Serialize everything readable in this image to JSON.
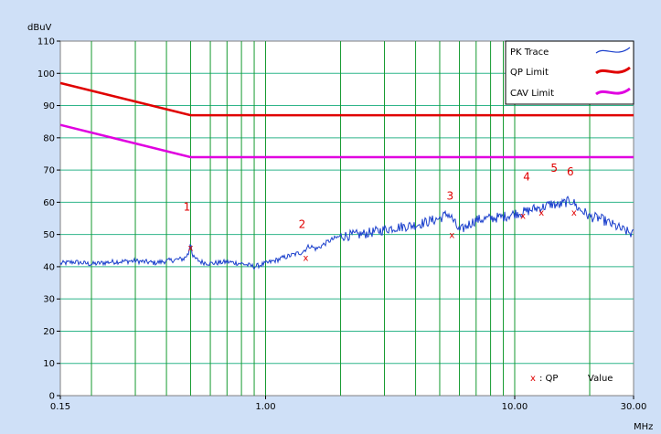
{
  "chart_data": {
    "type": "line",
    "ylabel": "dBuV",
    "xlabel": "MHz",
    "x_scale": "log",
    "xlim": [
      0.15,
      30
    ],
    "ylim": [
      0,
      110
    ],
    "x_tick_labels": [
      "0.15",
      "1.00",
      "10.00",
      "30.00"
    ],
    "x_ticks": [
      0.15,
      1,
      10,
      30
    ],
    "y_ticks": [
      0,
      10,
      20,
      30,
      40,
      50,
      60,
      70,
      80,
      90,
      100,
      110
    ],
    "y_tick_labels": [
      "0",
      "10",
      "20",
      "30",
      "40",
      "50",
      "60",
      "70",
      "80",
      "90",
      "100",
      "110"
    ],
    "grid": true,
    "legend_position": "top-right",
    "series": [
      {
        "name": "PK Trace",
        "color": "#1a3fcc",
        "points": [
          [
            0.15,
            41
          ],
          [
            0.17,
            41.5
          ],
          [
            0.2,
            40.8
          ],
          [
            0.24,
            41.5
          ],
          [
            0.3,
            41.8
          ],
          [
            0.36,
            41.2
          ],
          [
            0.42,
            42
          ],
          [
            0.47,
            42.5
          ],
          [
            0.49,
            44
          ],
          [
            0.5,
            48
          ],
          [
            0.51,
            43
          ],
          [
            0.55,
            41.5
          ],
          [
            0.6,
            41
          ],
          [
            0.7,
            41.5
          ],
          [
            0.8,
            41
          ],
          [
            0.9,
            40
          ],
          [
            1.0,
            41
          ],
          [
            1.1,
            42
          ],
          [
            1.2,
            43
          ],
          [
            1.4,
            44.5
          ],
          [
            1.5,
            46.5
          ],
          [
            1.6,
            45.5
          ],
          [
            1.8,
            48
          ],
          [
            2.0,
            49.5
          ],
          [
            2.4,
            50
          ],
          [
            2.8,
            51
          ],
          [
            3.2,
            52
          ],
          [
            3.6,
            52.5
          ],
          [
            4.0,
            53
          ],
          [
            4.5,
            54
          ],
          [
            5.0,
            55
          ],
          [
            5.4,
            56.5
          ],
          [
            5.6,
            55
          ],
          [
            6.0,
            51
          ],
          [
            6.5,
            53
          ],
          [
            7.0,
            54.5
          ],
          [
            8.0,
            55
          ],
          [
            9.0,
            55.5
          ],
          [
            10.0,
            56.5
          ],
          [
            11.0,
            57
          ],
          [
            12.0,
            58
          ],
          [
            13.0,
            58.5
          ],
          [
            14.0,
            59.5
          ],
          [
            15.0,
            59
          ],
          [
            16.0,
            60
          ],
          [
            17.0,
            60.5
          ],
          [
            18.0,
            58
          ],
          [
            19.0,
            57
          ],
          [
            20.0,
            55.5
          ],
          [
            22.0,
            55
          ],
          [
            24.0,
            53.5
          ],
          [
            27.0,
            51.5
          ],
          [
            30.0,
            50
          ]
        ]
      },
      {
        "name": "QP Limit",
        "color": "#e00000",
        "points": [
          [
            0.15,
            97
          ],
          [
            0.5,
            87
          ],
          [
            30,
            87
          ]
        ]
      },
      {
        "name": "CAV Limit",
        "color": "#e000e0",
        "points": [
          [
            0.15,
            84
          ],
          [
            0.5,
            74
          ],
          [
            30,
            74
          ]
        ]
      }
    ],
    "markers": [
      {
        "label": "1",
        "freq": 0.5,
        "value": 46
      },
      {
        "label": "2",
        "freq": 1.45,
        "value": 43
      },
      {
        "label": "3",
        "freq": 5.6,
        "value": 50
      },
      {
        "label": "4",
        "freq": 10.8,
        "value": 56
      },
      {
        "label": "5",
        "freq": 12.8,
        "value": 57
      },
      {
        "label": "6",
        "freq": 17.3,
        "value": 57
      }
    ],
    "note": {
      "marker": "x",
      "text": ": QP",
      "value_label": "Value"
    },
    "grid_lines_x": [
      0.2,
      0.3,
      0.4,
      0.5,
      0.6,
      0.7,
      0.8,
      0.9,
      1,
      2,
      3,
      4,
      5,
      6,
      7,
      8,
      9,
      10,
      20
    ]
  }
}
